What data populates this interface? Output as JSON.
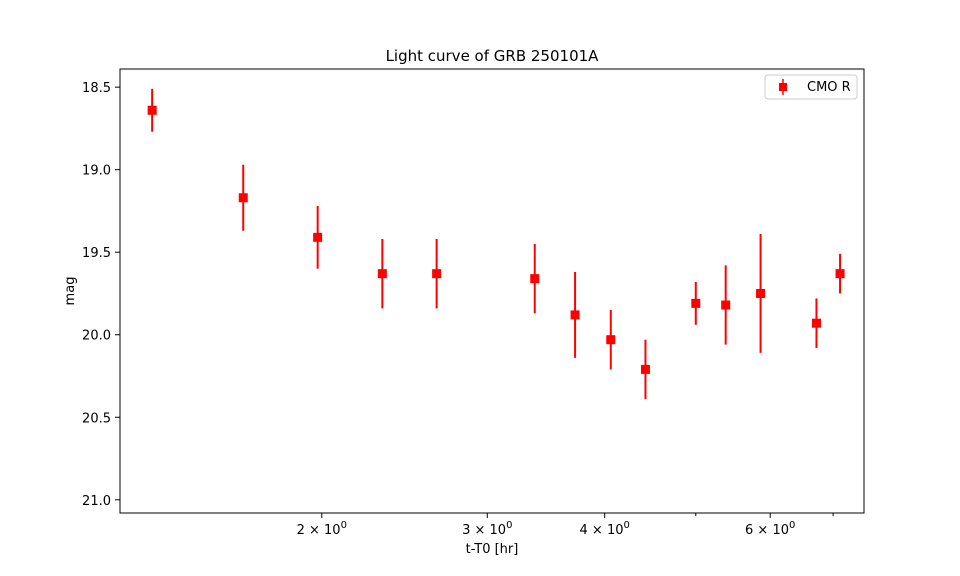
{
  "chart_data": {
    "type": "scatter",
    "title": "Light curve of GRB 250101A",
    "xlabel": "t-T0 [hr]",
    "ylabel": "mag",
    "x_scale": "log",
    "x_unit": "hr",
    "xlim": [
      1.22,
      7.55
    ],
    "ylim": [
      21.08,
      18.39
    ],
    "y_inverted": true,
    "grid": false,
    "legend_position": "top-right",
    "x_ticks": [
      {
        "value": 2,
        "label": "2 × 10^0"
      },
      {
        "value": 3,
        "label": "3 × 10^0"
      },
      {
        "value": 4,
        "label": "4 × 10^0"
      },
      {
        "value": 6,
        "label": "6 × 10^0"
      }
    ],
    "x_minor_ticks": [
      5,
      7
    ],
    "y_ticks": [
      18.5,
      19.0,
      19.5,
      20.0,
      20.5,
      21.0
    ],
    "y_tick_labels": [
      "18.5",
      "19.0",
      "19.5",
      "20.0",
      "20.5",
      "21.0"
    ],
    "series": [
      {
        "name": "CMO R",
        "color": "#ff0000",
        "marker": "square",
        "points": [
          {
            "x": 1.32,
            "y": 18.64,
            "err": 0.13
          },
          {
            "x": 1.65,
            "y": 19.17,
            "err": 0.2
          },
          {
            "x": 1.98,
            "y": 19.41,
            "err": 0.19
          },
          {
            "x": 2.32,
            "y": 19.63,
            "err": 0.21
          },
          {
            "x": 2.65,
            "y": 19.63,
            "err": 0.21
          },
          {
            "x": 3.37,
            "y": 19.66,
            "err": 0.21
          },
          {
            "x": 3.72,
            "y": 19.88,
            "err": 0.26
          },
          {
            "x": 4.06,
            "y": 20.03,
            "err": 0.18
          },
          {
            "x": 4.42,
            "y": 20.21,
            "err": 0.18
          },
          {
            "x": 5.0,
            "y": 19.81,
            "err": 0.13
          },
          {
            "x": 5.38,
            "y": 19.82,
            "err": 0.24
          },
          {
            "x": 5.86,
            "y": 19.75,
            "err": 0.36
          },
          {
            "x": 6.72,
            "y": 19.93,
            "err": 0.15
          },
          {
            "x": 7.12,
            "y": 19.63,
            "err": 0.12
          }
        ]
      }
    ]
  }
}
